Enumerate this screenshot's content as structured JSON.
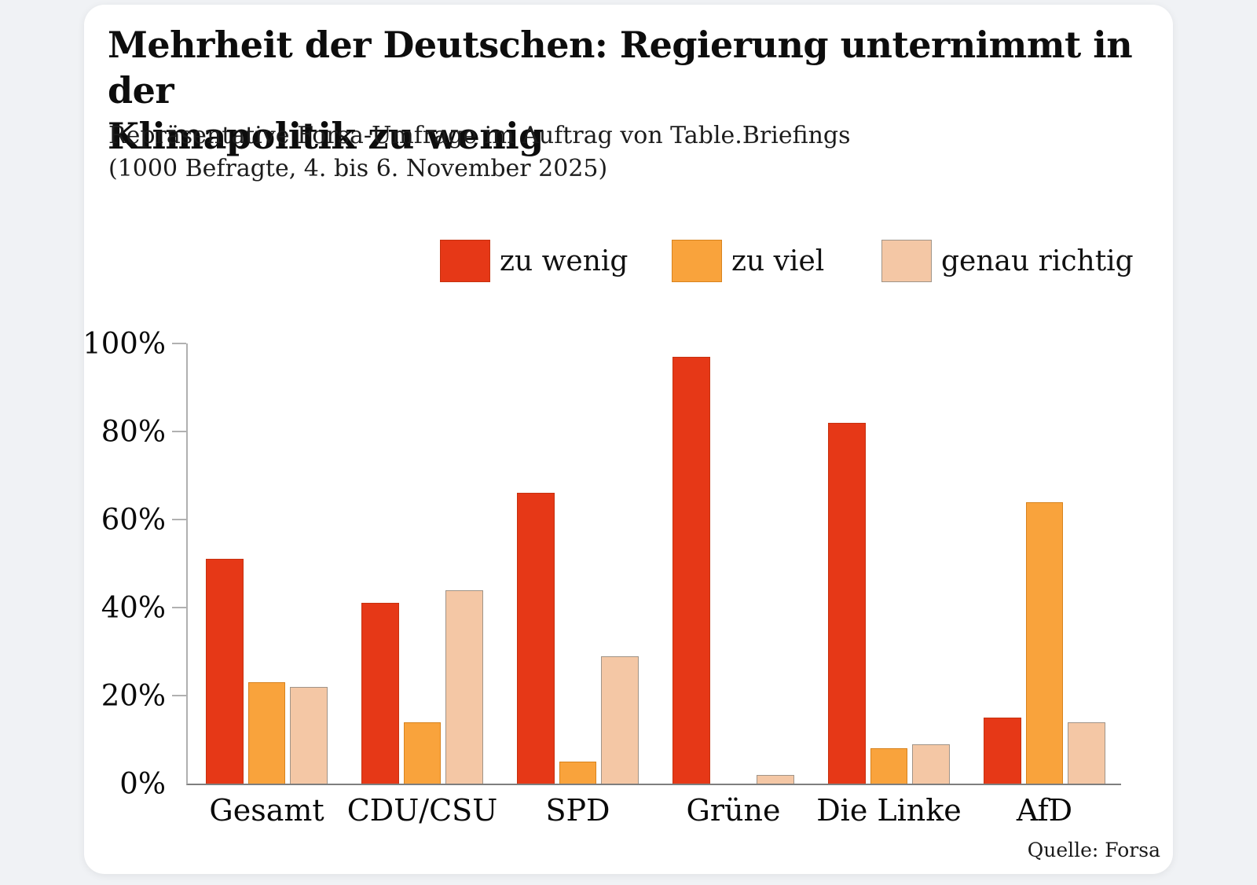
{
  "page": {
    "background": "#f0f2f5",
    "card_background": "#ffffff"
  },
  "header": {
    "title_line1": "Mehrheit der Deutschen: Regierung unternimmt in der",
    "title_line2": "Klimapolitik zu wenig",
    "subtitle_line1": "Repräsentative Forsa-Umfrage im Auftrag von Table.Briefings",
    "subtitle_line2": "(1000 Befragte, 4. bis 6. November 2025)"
  },
  "legend": {
    "items": [
      {
        "label": "zu wenig",
        "color": "#e63817",
        "edge_color": "#c6310f"
      },
      {
        "label": "zu viel",
        "color": "#f9a33c",
        "edge_color": "#d8831e"
      },
      {
        "label": "genau richtig",
        "color": "#f4c7a5",
        "edge_color": "#a09488"
      }
    ]
  },
  "source": "Quelle: Forsa",
  "chart_data": {
    "type": "bar",
    "title": "Mehrheit der Deutschen: Regierung unternimmt in der Klimapolitik zu wenig",
    "subtitle": "Repräsentative Forsa-Umfrage im Auftrag von Table.Briefings (1000 Befragte, 4. bis 6. November 2025)",
    "categories": [
      "Gesamt",
      "CDU/CSU",
      "SPD",
      "Grüne",
      "Die Linke",
      "AfD"
    ],
    "series": [
      {
        "name": "zu wenig",
        "color": "#e63817",
        "edge_color": "#c6310f",
        "values": [
          51,
          41,
          66,
          97,
          82,
          15
        ]
      },
      {
        "name": "zu viel",
        "color": "#f9a33c",
        "edge_color": "#d8831e",
        "values": [
          23,
          14,
          5,
          0,
          8,
          64
        ]
      },
      {
        "name": "genau richtig",
        "color": "#f4c7a5",
        "edge_color": "#a09488",
        "values": [
          22,
          44,
          29,
          2,
          9,
          14
        ]
      }
    ],
    "xlabel": "",
    "ylabel": "",
    "ylim": [
      0,
      100
    ],
    "yticks": [
      0,
      20,
      40,
      60,
      80,
      100
    ],
    "ytick_suffix": "%",
    "grid": false,
    "legend_position": "top",
    "source": "Quelle: Forsa"
  }
}
